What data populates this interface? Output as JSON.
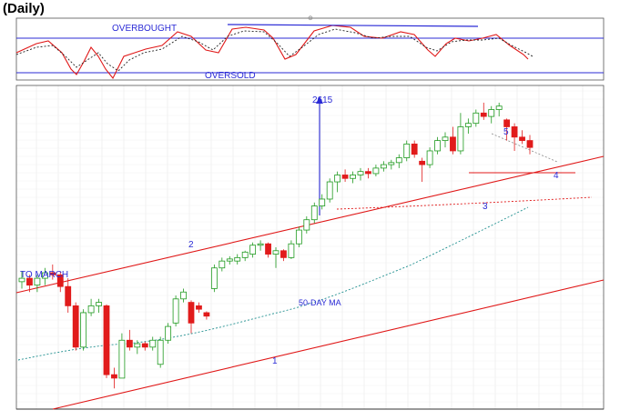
{
  "title": "(Daily)",
  "colors": {
    "up": "#1f9a1f",
    "down": "#e11b1b",
    "trendline": "#e01818",
    "annotation": "#2b2bd6",
    "ma": "#1f8f8f",
    "stoch_k": "#e01818",
    "stoch_d": "#222222"
  },
  "oscillator": {
    "overbought_label": "OVERBOUGHT",
    "oversold_label": "OVERSOLD"
  },
  "annotations": {
    "target": "2615",
    "to_march": "TO MARCH",
    "label_1": "1",
    "label_2": "2",
    "label_3": "3",
    "label_4": "4",
    "label_5": "5",
    "ma_label": "50-DAY MA"
  },
  "chart_data": {
    "type": "candlestick",
    "grid": true,
    "ohlc": [
      [
        2135,
        2150,
        2125,
        2140
      ],
      [
        2140,
        2145,
        2120,
        2130
      ],
      [
        2130,
        2145,
        2120,
        2140
      ],
      [
        2140,
        2155,
        2130,
        2148
      ],
      [
        2148,
        2160,
        2138,
        2145
      ],
      [
        2145,
        2150,
        2120,
        2128
      ],
      [
        2128,
        2140,
        2090,
        2100
      ],
      [
        2100,
        2105,
        2035,
        2040
      ],
      [
        2040,
        2095,
        2035,
        2090
      ],
      [
        2090,
        2110,
        2085,
        2100
      ],
      [
        2100,
        2110,
        2090,
        2105
      ],
      [
        2100,
        2102,
        1995,
        2000
      ],
      [
        2000,
        2010,
        1980,
        1995
      ],
      [
        1995,
        2060,
        1995,
        2050
      ],
      [
        2050,
        2065,
        2035,
        2040
      ],
      [
        2040,
        2050,
        2030,
        2045
      ],
      [
        2045,
        2048,
        2035,
        2040
      ],
      [
        2040,
        2055,
        2035,
        2050
      ],
      [
        2015,
        2055,
        2010,
        2050
      ],
      [
        2050,
        2075,
        2045,
        2070
      ],
      [
        2075,
        2115,
        2070,
        2110
      ],
      [
        2110,
        2125,
        2105,
        2120
      ],
      [
        2105,
        2108,
        2060,
        2075
      ],
      [
        2100,
        2105,
        2090,
        2095
      ],
      [
        2090,
        2092,
        2080,
        2085
      ],
      [
        2125,
        2160,
        2120,
        2155
      ],
      [
        2155,
        2170,
        2150,
        2165
      ],
      [
        2165,
        2172,
        2160,
        2168
      ],
      [
        2165,
        2175,
        2160,
        2170
      ],
      [
        2170,
        2180,
        2165,
        2178
      ],
      [
        2175,
        2192,
        2170,
        2188
      ],
      [
        2188,
        2195,
        2180,
        2190
      ],
      [
        2190,
        2192,
        2170,
        2175
      ],
      [
        2175,
        2185,
        2155,
        2180
      ],
      [
        2180,
        2182,
        2165,
        2170
      ],
      [
        2170,
        2195,
        2168,
        2190
      ],
      [
        2190,
        2215,
        2185,
        2210
      ],
      [
        2210,
        2230,
        2205,
        2225
      ],
      [
        2225,
        2250,
        2220,
        2245
      ],
      [
        2245,
        2262,
        2240,
        2255
      ],
      [
        2255,
        2285,
        2250,
        2280
      ],
      [
        2280,
        2295,
        2265,
        2290
      ],
      [
        2290,
        2298,
        2280,
        2285
      ],
      [
        2285,
        2295,
        2278,
        2290
      ],
      [
        2290,
        2300,
        2282,
        2295
      ],
      [
        2295,
        2300,
        2285,
        2292
      ],
      [
        2292,
        2305,
        2288,
        2300
      ],
      [
        2300,
        2310,
        2295,
        2305
      ],
      [
        2305,
        2312,
        2298,
        2308
      ],
      [
        2308,
        2320,
        2300,
        2315
      ],
      [
        2315,
        2340,
        2310,
        2335
      ],
      [
        2335,
        2340,
        2315,
        2320
      ],
      [
        2310,
        2315,
        2280,
        2305
      ],
      [
        2305,
        2330,
        2300,
        2325
      ],
      [
        2325,
        2345,
        2320,
        2340
      ],
      [
        2340,
        2352,
        2330,
        2345
      ],
      [
        2345,
        2360,
        2320,
        2325
      ],
      [
        2325,
        2380,
        2320,
        2360
      ],
      [
        2360,
        2372,
        2350,
        2365
      ],
      [
        2365,
        2385,
        2360,
        2380
      ],
      [
        2380,
        2395,
        2370,
        2375
      ],
      [
        2375,
        2390,
        2365,
        2385
      ],
      [
        2385,
        2395,
        2375,
        2390
      ],
      [
        2370,
        2372,
        2340,
        2360
      ],
      [
        2360,
        2365,
        2325,
        2345
      ],
      [
        2345,
        2355,
        2335,
        2340
      ],
      [
        2340,
        2348,
        2320,
        2330
      ]
    ]
  }
}
